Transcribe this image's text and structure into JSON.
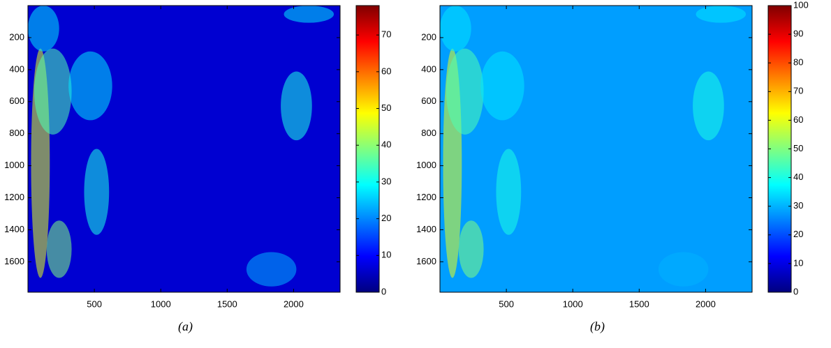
{
  "chart_data": [
    {
      "type": "heatmap",
      "colormap": "jet",
      "caption": "(a)",
      "xlim": [
        0,
        2350
      ],
      "xticks": [
        500,
        1000,
        1500,
        2000
      ],
      "ylim": [
        0,
        1790
      ],
      "y_reversed": true,
      "yticks": [
        200,
        400,
        600,
        800,
        1000,
        1200,
        1400,
        1600
      ],
      "clim": [
        0,
        78
      ],
      "cticks": [
        0,
        10,
        20,
        30,
        40,
        50,
        60,
        70
      ]
    },
    {
      "type": "heatmap",
      "colormap": "jet",
      "caption": "(b)",
      "xlim": [
        0,
        2350
      ],
      "xticks": [
        500,
        1000,
        1500,
        2000
      ],
      "ylim": [
        0,
        1790
      ],
      "y_reversed": true,
      "yticks": [
        200,
        400,
        600,
        800,
        1000,
        1200,
        1400,
        1600
      ],
      "clim": [
        0,
        100
      ],
      "cticks": [
        0,
        10,
        20,
        30,
        40,
        50,
        60,
        70,
        80,
        90,
        100
      ]
    }
  ]
}
